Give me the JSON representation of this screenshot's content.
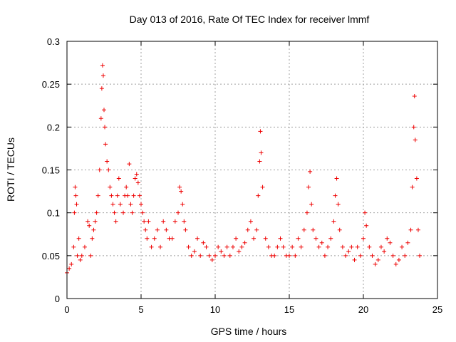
{
  "chart_data": {
    "type": "scatter",
    "title": "Day 013 of 2016, Rate Of TEC Index for receiver lmmf",
    "xlabel": "GPS time / hours",
    "ylabel": "ROTI / TECUs",
    "xlim": [
      0,
      25
    ],
    "ylim": [
      0,
      0.3
    ],
    "grid": true,
    "marker": "+",
    "color": "#ee0000",
    "x_ticks": [
      0,
      5,
      10,
      15,
      20,
      25
    ],
    "x_tick_labels": [
      "0",
      "5",
      "10",
      "15",
      "20",
      "25"
    ],
    "y_ticks": [
      0,
      0.05,
      0.1,
      0.15,
      0.2,
      0.25,
      0.3
    ],
    "y_tick_labels": [
      "0",
      "0.05",
      "0.1",
      "0.15",
      "0.2",
      "0.25",
      "0.3"
    ],
    "series": [
      {
        "name": "ROTI",
        "x": [
          0.0,
          0.15,
          0.3,
          0.45,
          0.5,
          0.55,
          0.6,
          0.65,
          0.7,
          0.8,
          0.9,
          1.0,
          1.2,
          1.4,
          1.5,
          1.6,
          1.7,
          1.8,
          1.9,
          2.0,
          2.1,
          2.2,
          2.3,
          2.35,
          2.4,
          2.45,
          2.5,
          2.55,
          2.6,
          2.7,
          2.8,
          2.9,
          3.0,
          3.1,
          3.2,
          3.3,
          3.4,
          3.5,
          3.6,
          3.8,
          3.9,
          4.0,
          4.1,
          4.2,
          4.3,
          4.4,
          4.5,
          4.6,
          4.7,
          4.8,
          4.9,
          5.0,
          5.1,
          5.2,
          5.3,
          5.4,
          5.5,
          5.7,
          5.9,
          6.1,
          6.3,
          6.5,
          6.7,
          6.9,
          7.1,
          7.3,
          7.5,
          7.6,
          7.7,
          7.8,
          7.9,
          8.0,
          8.2,
          8.4,
          8.6,
          8.8,
          9.0,
          9.2,
          9.4,
          9.6,
          9.8,
          10.0,
          10.2,
          10.4,
          10.6,
          10.8,
          11.0,
          11.2,
          11.4,
          11.6,
          11.8,
          12.0,
          12.2,
          12.4,
          12.6,
          12.8,
          12.9,
          13.0,
          13.05,
          13.1,
          13.2,
          13.4,
          13.6,
          13.8,
          14.0,
          14.2,
          14.4,
          14.6,
          14.8,
          15.0,
          15.2,
          15.4,
          15.6,
          15.8,
          16.0,
          16.2,
          16.3,
          16.4,
          16.5,
          16.6,
          16.8,
          17.0,
          17.2,
          17.4,
          17.6,
          17.8,
          18.0,
          18.1,
          18.2,
          18.3,
          18.4,
          18.6,
          18.8,
          19.0,
          19.2,
          19.4,
          19.6,
          19.8,
          20.0,
          20.1,
          20.2,
          20.4,
          20.6,
          20.8,
          21.0,
          21.2,
          21.4,
          21.6,
          21.8,
          22.0,
          22.2,
          22.4,
          22.6,
          22.8,
          23.0,
          23.2,
          23.3,
          23.4,
          23.45,
          23.5,
          23.6,
          23.7,
          23.8
        ],
        "y": [
          0.03,
          0.035,
          0.04,
          0.06,
          0.1,
          0.13,
          0.12,
          0.11,
          0.05,
          0.07,
          0.045,
          0.05,
          0.06,
          0.09,
          0.085,
          0.05,
          0.07,
          0.08,
          0.09,
          0.1,
          0.12,
          0.15,
          0.21,
          0.245,
          0.272,
          0.26,
          0.22,
          0.2,
          0.18,
          0.16,
          0.15,
          0.13,
          0.12,
          0.11,
          0.1,
          0.09,
          0.12,
          0.14,
          0.11,
          0.1,
          0.12,
          0.13,
          0.12,
          0.157,
          0.11,
          0.1,
          0.12,
          0.14,
          0.145,
          0.135,
          0.12,
          0.11,
          0.1,
          0.09,
          0.08,
          0.07,
          0.09,
          0.06,
          0.07,
          0.08,
          0.06,
          0.09,
          0.08,
          0.07,
          0.07,
          0.09,
          0.1,
          0.13,
          0.125,
          0.11,
          0.09,
          0.08,
          0.06,
          0.05,
          0.055,
          0.07,
          0.05,
          0.065,
          0.06,
          0.05,
          0.045,
          0.05,
          0.06,
          0.055,
          0.05,
          0.06,
          0.05,
          0.06,
          0.07,
          0.055,
          0.06,
          0.065,
          0.08,
          0.09,
          0.07,
          0.08,
          0.12,
          0.16,
          0.195,
          0.17,
          0.13,
          0.07,
          0.06,
          0.05,
          0.05,
          0.06,
          0.07,
          0.06,
          0.05,
          0.05,
          0.06,
          0.05,
          0.07,
          0.06,
          0.08,
          0.1,
          0.13,
          0.148,
          0.11,
          0.08,
          0.07,
          0.06,
          0.065,
          0.05,
          0.06,
          0.07,
          0.09,
          0.12,
          0.14,
          0.11,
          0.08,
          0.06,
          0.05,
          0.055,
          0.06,
          0.045,
          0.06,
          0.05,
          0.07,
          0.1,
          0.085,
          0.06,
          0.05,
          0.04,
          0.045,
          0.06,
          0.055,
          0.07,
          0.065,
          0.05,
          0.04,
          0.045,
          0.06,
          0.05,
          0.065,
          0.08,
          0.13,
          0.2,
          0.236,
          0.185,
          0.14,
          0.08,
          0.05
        ]
      }
    ]
  }
}
